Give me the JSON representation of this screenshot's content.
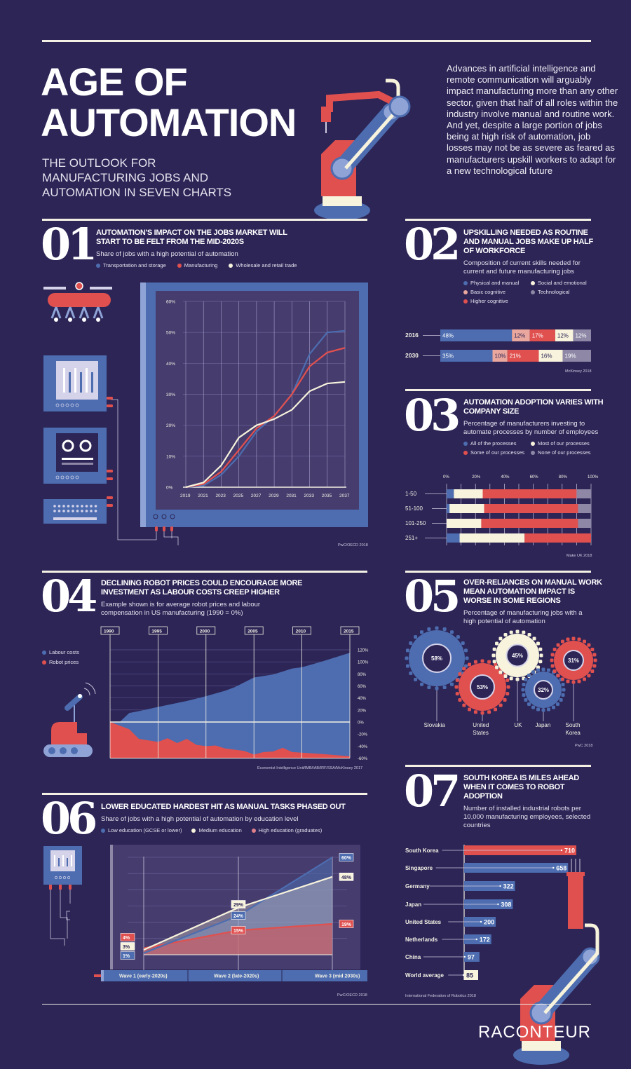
{
  "header": {
    "title_line1": "AGE OF",
    "title_line2": "AUTOMATION",
    "subtitle": [
      "THE OUTLOOK FOR",
      "MANUFACTURING JOBS AND",
      "AUTOMATION IN SEVEN CHARTS"
    ],
    "intro": "Advances in artificial intelligence and remote communication will arguably impact manufacturing more than any other sector, given that half of all roles within the industry involve manual and routine work. And yet, despite a large portion of jobs being at high risk of automation, job losses may not be as severe as feared as manufacturers upskill workers to adapt for a new technological future"
  },
  "colors": {
    "background": "#2c2556",
    "blue": "#4d6db0",
    "red": "#e0504f",
    "cream": "#f7f3dc",
    "grey": "#8e88a6",
    "pink": "#eaa79e",
    "panel": "#463c6e"
  },
  "sections": {
    "s01": {
      "number": "01",
      "title": "AUTOMATION'S IMPACT ON THE JOBS MARKET WILL START TO BE FELT FROM THE MID-2020S",
      "subtitle": "Share of jobs with a high potential of automation",
      "legend": [
        "Transportation and storage",
        "Manufacturing",
        "Wholesale and retail trade"
      ],
      "source": "PwC/OECD 2018"
    },
    "s02": {
      "number": "02",
      "title": "UPSKILLING NEEDED AS ROUTINE AND MANUAL JOBS MAKE UP HALF OF WORKFORCE",
      "subtitle": "Composition of current skills needed for current and future manufacturing jobs",
      "legend": [
        "Physical and manual",
        "Social and emotional",
        "Basic cognitive",
        "Technological",
        "Higher cognitive"
      ],
      "source": "McKinsey 2018"
    },
    "s03": {
      "number": "03",
      "title": "AUTOMATION ADOPTION VARIES WITH COMPANY SIZE",
      "subtitle": "Percentage of manufacturers investing to automate processes by number of employees",
      "legend": [
        "All of the processes",
        "Most of our processes",
        "Some of our processes",
        "None of our processes"
      ],
      "source": "Make UK 2018"
    },
    "s04": {
      "number": "04",
      "title": "DECLINING ROBOT PRICES COULD ENCOURAGE MORE INVESTMENT AS LABOUR COSTS CREEP HIGHER",
      "subtitle": "Example shown is for average robot prices and labour compensation in US manufacturing (1990 = 0%)",
      "legend": [
        "Labour costs",
        "Robot prices"
      ],
      "source": "Economist Intelligence Unit/IMB/IAB/IRF/SSA/McKinsey 2017"
    },
    "s05": {
      "number": "05",
      "title": "OVER-RELIANCES ON MANUAL WORK MEAN AUTOMATION IMPACT IS WORSE IN SOME REGIONS",
      "subtitle": "Percentage of manufacturing jobs with a high potential of automation",
      "source": "PwC 2018"
    },
    "s06": {
      "number": "06",
      "title": "LOWER EDUCATED HARDEST HIT AS MANUAL TASKS PHASED OUT",
      "subtitle": "Share of jobs with a high potential of automation by education level",
      "legend": [
        "Low education (GCSE or lower)",
        "Medium education",
        "High education (graduates)"
      ],
      "source": "PwC/OECD 2018"
    },
    "s07": {
      "number": "07",
      "title": "SOUTH KOREA IS MILES AHEAD WHEN IT COMES TO ROBOT ADOPTION",
      "subtitle": "Number of installed industrial robots per 10,000 manufacturing employees, selected countries",
      "source": "International Federation of Robotics 2018"
    }
  },
  "logo": "RACONTEUR",
  "chart_data": [
    {
      "id": "c01",
      "type": "line",
      "x": [
        2019,
        2021,
        2023,
        2025,
        2027,
        2029,
        2031,
        2033,
        2035,
        2037
      ],
      "yticks": [
        "0%",
        "10%",
        "20%",
        "30%",
        "40%",
        "50%",
        "60%"
      ],
      "ylim": [
        0,
        60
      ],
      "grid": true,
      "series": [
        {
          "name": "Transportation and storage",
          "color": "#4d6db0",
          "values": [
            0,
            0.5,
            4,
            10,
            18,
            23,
            30,
            43,
            50,
            50.5
          ]
        },
        {
          "name": "Manufacturing",
          "color": "#e0504f",
          "values": [
            0,
            1,
            5,
            12,
            19,
            23,
            30,
            39,
            43.5,
            45
          ]
        },
        {
          "name": "Wholesale and retail trade",
          "color": "#f7f3dc",
          "values": [
            0,
            1.5,
            7,
            16,
            20,
            22,
            25,
            31,
            33.5,
            34
          ]
        }
      ]
    },
    {
      "id": "c02",
      "type": "bar",
      "stacked": true,
      "categories": [
        "2016",
        "2030"
      ],
      "series": [
        {
          "name": "Physical and manual",
          "color": "#4d6db0",
          "values": [
            48,
            35
          ]
        },
        {
          "name": "Basic cognitive",
          "color": "#eaa79e",
          "values": [
            12,
            10
          ]
        },
        {
          "name": "Higher cognitive",
          "color": "#e0504f",
          "values": [
            17,
            21
          ]
        },
        {
          "name": "Social and emotional",
          "color": "#f7f3dc",
          "values": [
            12,
            16
          ]
        },
        {
          "name": "Technological",
          "color": "#8e88a6",
          "values": [
            12,
            19
          ]
        }
      ]
    },
    {
      "id": "c03",
      "type": "bar",
      "stacked": true,
      "categories": [
        "1-50",
        "51-100",
        "101-250",
        "251+"
      ],
      "xticks": [
        "0%",
        "20%",
        "40%",
        "60%",
        "80%",
        "100%"
      ],
      "xlim": [
        0,
        100
      ],
      "series": [
        {
          "name": "All of the processes",
          "color": "#4d6db0",
          "values": [
            5,
            2,
            0,
            9
          ]
        },
        {
          "name": "Most of our processes",
          "color": "#f7f3dc",
          "values": [
            20,
            24,
            24,
            45
          ]
        },
        {
          "name": "Some of our processes",
          "color": "#e0504f",
          "values": [
            65,
            65,
            67,
            46
          ]
        },
        {
          "name": "None of our processes",
          "color": "#8e88a6",
          "values": [
            10,
            9,
            9,
            0
          ]
        }
      ]
    },
    {
      "id": "c04",
      "type": "area",
      "xticks": [
        "1990",
        "1995",
        "2000",
        "2005",
        "2010",
        "2015"
      ],
      "xlim": [
        1990,
        2015
      ],
      "yticks": [
        "120%",
        "100%",
        "80%",
        "60%",
        "40%",
        "20%",
        "0%",
        "-20%",
        "-40%",
        "-60%"
      ],
      "ylim": [
        -60,
        120
      ],
      "series": [
        {
          "name": "Labour costs",
          "color": "#4d6db0",
          "x": [
            1990,
            1991,
            1992,
            1993,
            1995,
            1998,
            2000,
            2002,
            2003,
            2005,
            2007,
            2009,
            2010,
            2012,
            2015
          ],
          "values": [
            0,
            0,
            15,
            18,
            25,
            35,
            43,
            52,
            58,
            74,
            79,
            89,
            91,
            100,
            115
          ]
        },
        {
          "name": "Robot prices",
          "color": "#e0504f",
          "x": [
            1990,
            1992,
            1993,
            1995,
            1996,
            1997,
            1998,
            1999,
            2000,
            2001,
            2002,
            2004,
            2005,
            2006,
            2007,
            2008,
            2009,
            2012,
            2015
          ],
          "values": [
            0,
            -12,
            -28,
            -33,
            -27,
            -35,
            -28,
            -38,
            -40,
            -39,
            -44,
            -48,
            -54,
            -50,
            -49,
            -43,
            -50,
            -53,
            -57
          ]
        }
      ]
    },
    {
      "id": "c05",
      "type": "pie",
      "categories": [
        "Slovakia",
        "United States",
        "UK",
        "Japan",
        "South Korea"
      ],
      "values": [
        58,
        53,
        45,
        32,
        31
      ],
      "labels": [
        "58%",
        "53%",
        "45%",
        "32%",
        "31%"
      ],
      "colors": [
        "#4d6db0",
        "#e0504f",
        "#f7f3dc",
        "#4d6db0",
        "#e0504f"
      ]
    },
    {
      "id": "c06",
      "type": "area",
      "categories": [
        "Wave 1 (early-2020s)",
        "Wave 2 (late-2020s)",
        "Wave 3 (mid 2030s)"
      ],
      "ylim": [
        0,
        60
      ],
      "series": [
        {
          "name": "Low education (GCSE or lower)",
          "color": "#4d6db0",
          "values": [
            1,
            24,
            60
          ],
          "labels": [
            "1%",
            "24%",
            "60%"
          ]
        },
        {
          "name": "Medium education",
          "color": "#f7f3dc",
          "values": [
            3,
            29,
            48
          ],
          "labels": [
            "3%",
            "29%",
            "48%"
          ]
        },
        {
          "name": "High education (graduates)",
          "color": "#e0504f",
          "values": [
            4,
            15,
            19
          ],
          "labels": [
            "4%",
            "15%",
            "19%"
          ]
        }
      ]
    },
    {
      "id": "c07",
      "type": "bar",
      "orientation": "horizontal",
      "categories": [
        "South Korea",
        "Singapore",
        "Germany",
        "Japan",
        "United States",
        "Netherlands",
        "China",
        "World average"
      ],
      "values": [
        710,
        658,
        322,
        308,
        200,
        172,
        97,
        85
      ],
      "colors": [
        "#e0504f",
        "#4d6db0",
        "#4d6db0",
        "#4d6db0",
        "#4d6db0",
        "#4d6db0",
        "#4d6db0",
        "#f7f3dc"
      ]
    }
  ]
}
